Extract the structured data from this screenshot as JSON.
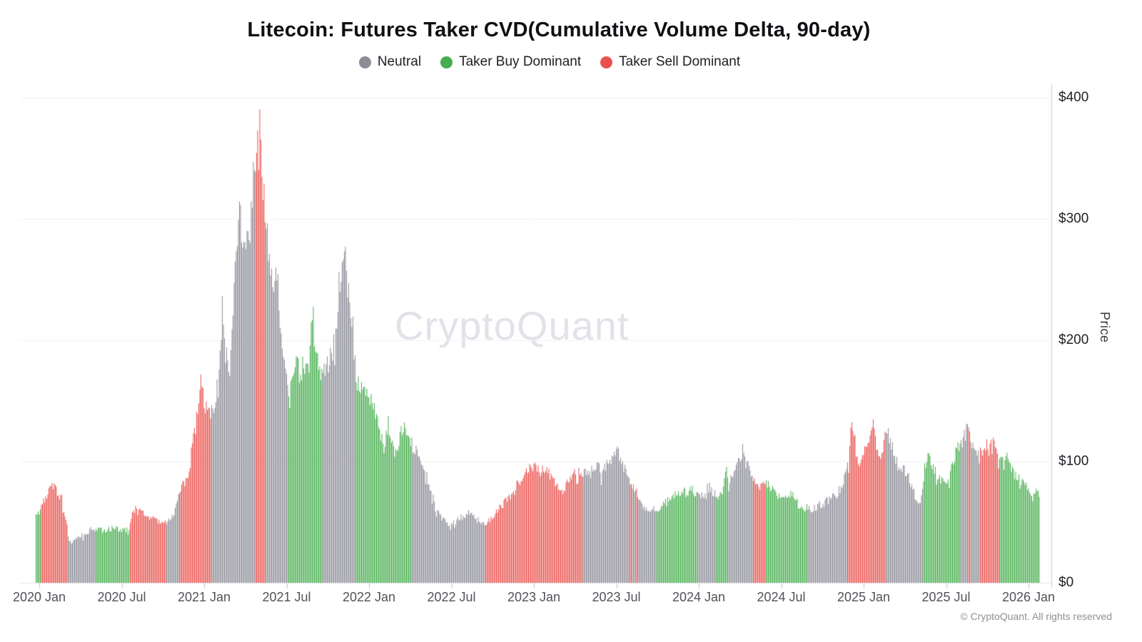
{
  "header": {
    "title": "Litecoin: Futures Taker CVD(Cumulative Volume Delta, 90-day)"
  },
  "legend": {
    "items": [
      {
        "label": "Neutral",
        "state": "neutral",
        "color": "#8c8c96"
      },
      {
        "label": "Taker Buy Dominant",
        "state": "buy",
        "color": "#47ad4e"
      },
      {
        "label": "Taker Sell Dominant",
        "state": "sell",
        "color": "#ea524e"
      }
    ]
  },
  "watermark": "CryptoQuant",
  "footer": {
    "copyright": "© CryptoQuant. All rights reserved"
  },
  "chart_data": {
    "type": "bar",
    "title": "Litecoin: Futures Taker CVD(Cumulative Volume Delta, 90-day)",
    "xlabel": "",
    "ylabel": "Price",
    "ylim": [
      0,
      400
    ],
    "grid": "horizontal-light",
    "legend_position": "top-center",
    "x_span": {
      "start": "2020 Jan",
      "end": "2026 Jan"
    },
    "x_ticks": [
      "2020 Jan",
      "2020 Jul",
      "2021 Jan",
      "2021 Jul",
      "2022 Jan",
      "2022 Jul",
      "2023 Jan",
      "2023 Jul",
      "2024 Jan",
      "2024 Jul",
      "2025 Jan",
      "2025 Jul",
      "2026 Jan"
    ],
    "y_ticks": [
      {
        "label": "$0",
        "value": 0
      },
      {
        "label": "$100",
        "value": 100
      },
      {
        "label": "$200",
        "value": 200
      },
      {
        "label": "$300",
        "value": 300
      },
      {
        "label": "$400",
        "value": 400
      }
    ],
    "bar_colors": {
      "neutral": "#8c8c96",
      "buy": "#47ad4e",
      "sell": "#ea524e"
    },
    "price_envelope_usd": [
      [
        0.0,
        55
      ],
      [
        0.005,
        62
      ],
      [
        0.011,
        72
      ],
      [
        0.016,
        82
      ],
      [
        0.021,
        76
      ],
      [
        0.026,
        68
      ],
      [
        0.03,
        52
      ],
      [
        0.033,
        33
      ],
      [
        0.039,
        36
      ],
      [
        0.048,
        40
      ],
      [
        0.057,
        45
      ],
      [
        0.067,
        43
      ],
      [
        0.077,
        45
      ],
      [
        0.088,
        44
      ],
      [
        0.093,
        46
      ],
      [
        0.096,
        57
      ],
      [
        0.103,
        64
      ],
      [
        0.11,
        56
      ],
      [
        0.118,
        53
      ],
      [
        0.126,
        50
      ],
      [
        0.133,
        52
      ],
      [
        0.138,
        56
      ],
      [
        0.142,
        70
      ],
      [
        0.146,
        86
      ],
      [
        0.149,
        82
      ],
      [
        0.153,
        95
      ],
      [
        0.157,
        120
      ],
      [
        0.16,
        133
      ],
      [
        0.162,
        155
      ],
      [
        0.165,
        176
      ],
      [
        0.167,
        150
      ],
      [
        0.169,
        141
      ],
      [
        0.172,
        148
      ],
      [
        0.175,
        141
      ],
      [
        0.177,
        146
      ],
      [
        0.179,
        150
      ],
      [
        0.183,
        182
      ],
      [
        0.186,
        237
      ],
      [
        0.189,
        186
      ],
      [
        0.192,
        182
      ],
      [
        0.195,
        205
      ],
      [
        0.198,
        262
      ],
      [
        0.201,
        290
      ],
      [
        0.204,
        304
      ],
      [
        0.207,
        268
      ],
      [
        0.211,
        308
      ],
      [
        0.213,
        278
      ],
      [
        0.216,
        330
      ],
      [
        0.218,
        355
      ],
      [
        0.219,
        335
      ],
      [
        0.221,
        387
      ],
      [
        0.223,
        374
      ],
      [
        0.225,
        345
      ],
      [
        0.227,
        316
      ],
      [
        0.229,
        294
      ],
      [
        0.231,
        280
      ],
      [
        0.234,
        254
      ],
      [
        0.237,
        234
      ],
      [
        0.24,
        256
      ],
      [
        0.243,
        224
      ],
      [
        0.246,
        196
      ],
      [
        0.249,
        168
      ],
      [
        0.253,
        152
      ],
      [
        0.256,
        172
      ],
      [
        0.26,
        181
      ],
      [
        0.263,
        170
      ],
      [
        0.267,
        183
      ],
      [
        0.27,
        178
      ],
      [
        0.273,
        186
      ],
      [
        0.275,
        232
      ],
      [
        0.278,
        201
      ],
      [
        0.281,
        186
      ],
      [
        0.283,
        178
      ],
      [
        0.286,
        171
      ],
      [
        0.289,
        181
      ],
      [
        0.292,
        179
      ],
      [
        0.295,
        190
      ],
      [
        0.298,
        206
      ],
      [
        0.3,
        222
      ],
      [
        0.302,
        246
      ],
      [
        0.305,
        261
      ],
      [
        0.307,
        278
      ],
      [
        0.31,
        251
      ],
      [
        0.312,
        237
      ],
      [
        0.315,
        218
      ],
      [
        0.317,
        201
      ],
      [
        0.319,
        168
      ],
      [
        0.322,
        160
      ],
      [
        0.325,
        163
      ],
      [
        0.33,
        155
      ],
      [
        0.334,
        150
      ],
      [
        0.339,
        136
      ],
      [
        0.344,
        120
      ],
      [
        0.347,
        113
      ],
      [
        0.351,
        132
      ],
      [
        0.354,
        119
      ],
      [
        0.357,
        108
      ],
      [
        0.362,
        118
      ],
      [
        0.366,
        128
      ],
      [
        0.37,
        122
      ],
      [
        0.374,
        115
      ],
      [
        0.378,
        110
      ],
      [
        0.381,
        107
      ],
      [
        0.385,
        101
      ],
      [
        0.388,
        95
      ],
      [
        0.391,
        84
      ],
      [
        0.395,
        73
      ],
      [
        0.399,
        61
      ],
      [
        0.402,
        56
      ],
      [
        0.406,
        52
      ],
      [
        0.409,
        50
      ],
      [
        0.414,
        48
      ],
      [
        0.42,
        52
      ],
      [
        0.426,
        55
      ],
      [
        0.431,
        58
      ],
      [
        0.436,
        56
      ],
      [
        0.44,
        52
      ],
      [
        0.444,
        49
      ],
      [
        0.448,
        47
      ],
      [
        0.455,
        55
      ],
      [
        0.463,
        62
      ],
      [
        0.47,
        70
      ],
      [
        0.475,
        75
      ],
      [
        0.481,
        82
      ],
      [
        0.487,
        90
      ],
      [
        0.492,
        95
      ],
      [
        0.498,
        97
      ],
      [
        0.502,
        92
      ],
      [
        0.507,
        95
      ],
      [
        0.512,
        90
      ],
      [
        0.518,
        82
      ],
      [
        0.523,
        74
      ],
      [
        0.528,
        80
      ],
      [
        0.534,
        88
      ],
      [
        0.539,
        90
      ],
      [
        0.544,
        92
      ],
      [
        0.549,
        89
      ],
      [
        0.554,
        93
      ],
      [
        0.559,
        95
      ],
      [
        0.564,
        92
      ],
      [
        0.568,
        96
      ],
      [
        0.573,
        101
      ],
      [
        0.578,
        111
      ],
      [
        0.582,
        102
      ],
      [
        0.586,
        95
      ],
      [
        0.591,
        87
      ],
      [
        0.595,
        81
      ],
      [
        0.599,
        74
      ],
      [
        0.605,
        63
      ],
      [
        0.612,
        60
      ],
      [
        0.619,
        61
      ],
      [
        0.625,
        64
      ],
      [
        0.631,
        68
      ],
      [
        0.636,
        72
      ],
      [
        0.64,
        74
      ],
      [
        0.645,
        76
      ],
      [
        0.649,
        74
      ],
      [
        0.653,
        78
      ],
      [
        0.658,
        73
      ],
      [
        0.662,
        71
      ],
      [
        0.666,
        75
      ],
      [
        0.67,
        80
      ],
      [
        0.675,
        74
      ],
      [
        0.679,
        73
      ],
      [
        0.684,
        76
      ],
      [
        0.688,
        94
      ],
      [
        0.69,
        81
      ],
      [
        0.694,
        88
      ],
      [
        0.697,
        95
      ],
      [
        0.701,
        102
      ],
      [
        0.705,
        110
      ],
      [
        0.707,
        101
      ],
      [
        0.71,
        96
      ],
      [
        0.714,
        86
      ],
      [
        0.717,
        81
      ],
      [
        0.722,
        79
      ],
      [
        0.726,
        83
      ],
      [
        0.73,
        80
      ],
      [
        0.734,
        76
      ],
      [
        0.739,
        72
      ],
      [
        0.743,
        70
      ],
      [
        0.747,
        73
      ],
      [
        0.751,
        74
      ],
      [
        0.756,
        70
      ],
      [
        0.76,
        64
      ],
      [
        0.764,
        61
      ],
      [
        0.769,
        62
      ],
      [
        0.773,
        60
      ],
      [
        0.777,
        62
      ],
      [
        0.781,
        64
      ],
      [
        0.786,
        66
      ],
      [
        0.79,
        70
      ],
      [
        0.794,
        74
      ],
      [
        0.798,
        72
      ],
      [
        0.803,
        80
      ],
      [
        0.807,
        88
      ],
      [
        0.81,
        101
      ],
      [
        0.813,
        134
      ],
      [
        0.816,
        121
      ],
      [
        0.818,
        106
      ],
      [
        0.821,
        101
      ],
      [
        0.824,
        108
      ],
      [
        0.827,
        118
      ],
      [
        0.83,
        112
      ],
      [
        0.833,
        135
      ],
      [
        0.836,
        125
      ],
      [
        0.838,
        111
      ],
      [
        0.841,
        106
      ],
      [
        0.844,
        102
      ],
      [
        0.847,
        130
      ],
      [
        0.85,
        124
      ],
      [
        0.853,
        112
      ],
      [
        0.856,
        105
      ],
      [
        0.86,
        98
      ],
      [
        0.863,
        95
      ],
      [
        0.867,
        92
      ],
      [
        0.87,
        88
      ],
      [
        0.874,
        78
      ],
      [
        0.878,
        66
      ],
      [
        0.881,
        65
      ],
      [
        0.885,
        90
      ],
      [
        0.888,
        105
      ],
      [
        0.891,
        100
      ],
      [
        0.894,
        95
      ],
      [
        0.897,
        91
      ],
      [
        0.901,
        86
      ],
      [
        0.905,
        82
      ],
      [
        0.908,
        86
      ],
      [
        0.912,
        92
      ],
      [
        0.915,
        100
      ],
      [
        0.918,
        117
      ],
      [
        0.921,
        110
      ],
      [
        0.924,
        118
      ],
      [
        0.927,
        125
      ],
      [
        0.929,
        129
      ],
      [
        0.932,
        116
      ],
      [
        0.934,
        112
      ],
      [
        0.937,
        110
      ],
      [
        0.94,
        112
      ],
      [
        0.943,
        110
      ],
      [
        0.946,
        115
      ],
      [
        0.949,
        112
      ],
      [
        0.952,
        118
      ],
      [
        0.954,
        124
      ],
      [
        0.957,
        113
      ],
      [
        0.96,
        105
      ],
      [
        0.963,
        100
      ],
      [
        0.966,
        96
      ],
      [
        0.969,
        108
      ],
      [
        0.971,
        95
      ],
      [
        0.974,
        91
      ],
      [
        0.977,
        88
      ],
      [
        0.98,
        85
      ],
      [
        0.983,
        83
      ],
      [
        0.986,
        80
      ],
      [
        0.989,
        78
      ],
      [
        0.991,
        76
      ],
      [
        0.994,
        75
      ],
      [
        0.997,
        77
      ],
      [
        1.0,
        74
      ]
    ],
    "state_segments": [
      {
        "from": 0.0,
        "to": 0.005,
        "state": "buy"
      },
      {
        "from": 0.005,
        "to": 0.032,
        "state": "sell"
      },
      {
        "from": 0.032,
        "to": 0.059,
        "state": "neutral"
      },
      {
        "from": 0.059,
        "to": 0.093,
        "state": "buy"
      },
      {
        "from": 0.093,
        "to": 0.13,
        "state": "sell"
      },
      {
        "from": 0.13,
        "to": 0.143,
        "state": "neutral"
      },
      {
        "from": 0.143,
        "to": 0.175,
        "state": "sell"
      },
      {
        "from": 0.175,
        "to": 0.218,
        "state": "neutral"
      },
      {
        "from": 0.218,
        "to": 0.229,
        "state": "sell"
      },
      {
        "from": 0.229,
        "to": 0.251,
        "state": "neutral"
      },
      {
        "from": 0.251,
        "to": 0.286,
        "state": "buy"
      },
      {
        "from": 0.286,
        "to": 0.319,
        "state": "neutral"
      },
      {
        "from": 0.319,
        "to": 0.374,
        "state": "buy"
      },
      {
        "from": 0.374,
        "to": 0.448,
        "state": "neutral"
      },
      {
        "from": 0.448,
        "to": 0.545,
        "state": "sell"
      },
      {
        "from": 0.545,
        "to": 0.592,
        "state": "neutral"
      },
      {
        "from": 0.592,
        "to": 0.594,
        "state": "sell"
      },
      {
        "from": 0.594,
        "to": 0.598,
        "state": "neutral"
      },
      {
        "from": 0.598,
        "to": 0.6,
        "state": "sell"
      },
      {
        "from": 0.6,
        "to": 0.618,
        "state": "neutral"
      },
      {
        "from": 0.618,
        "to": 0.659,
        "state": "buy"
      },
      {
        "from": 0.659,
        "to": 0.677,
        "state": "neutral"
      },
      {
        "from": 0.677,
        "to": 0.69,
        "state": "buy"
      },
      {
        "from": 0.69,
        "to": 0.714,
        "state": "neutral"
      },
      {
        "from": 0.714,
        "to": 0.727,
        "state": "sell"
      },
      {
        "from": 0.727,
        "to": 0.769,
        "state": "buy"
      },
      {
        "from": 0.769,
        "to": 0.808,
        "state": "neutral"
      },
      {
        "from": 0.808,
        "to": 0.847,
        "state": "sell"
      },
      {
        "from": 0.847,
        "to": 0.884,
        "state": "neutral"
      },
      {
        "from": 0.884,
        "to": 0.922,
        "state": "buy"
      },
      {
        "from": 0.922,
        "to": 0.929,
        "state": "neutral"
      },
      {
        "from": 0.929,
        "to": 0.931,
        "state": "sell"
      },
      {
        "from": 0.931,
        "to": 0.941,
        "state": "neutral"
      },
      {
        "from": 0.941,
        "to": 0.96,
        "state": "sell"
      },
      {
        "from": 0.96,
        "to": 1.0,
        "state": "buy"
      }
    ]
  }
}
